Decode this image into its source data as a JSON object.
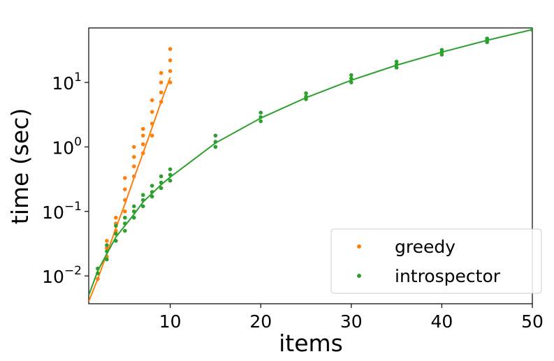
{
  "chart_data": {
    "type": "scatter",
    "xlabel": "items",
    "ylabel": "time (sec)",
    "xlim": [
      1,
      50
    ],
    "xticks": [
      10,
      20,
      30,
      40,
      50
    ],
    "ylim": [
      0.0037,
      70
    ],
    "yscale": "log",
    "yticks": [
      {
        "value": 0.01,
        "label": "10",
        "exponent": "−2"
      },
      {
        "value": 0.1,
        "label": "10",
        "exponent": "−1"
      },
      {
        "value": 1,
        "label": "10",
        "exponent": "0"
      },
      {
        "value": 10,
        "label": "10",
        "exponent": "1"
      }
    ],
    "legend": "lower right",
    "series": [
      {
        "name": "greedy",
        "color": "#ff7f0e",
        "x": [
          2,
          2,
          2,
          3,
          3,
          3,
          4,
          4,
          4,
          5,
          5,
          5,
          5,
          6,
          6,
          6,
          6,
          7,
          7,
          7,
          7,
          8,
          8,
          8,
          8,
          9,
          9,
          9,
          9,
          10,
          10,
          10,
          10
        ],
        "values": [
          0.009,
          0.011,
          0.013,
          0.02,
          0.027,
          0.035,
          0.05,
          0.065,
          0.08,
          0.1,
          0.15,
          0.22,
          0.33,
          0.35,
          0.5,
          0.7,
          1.0,
          0.8,
          1.1,
          1.5,
          1.9,
          1.5,
          2.3,
          3.5,
          5.3,
          5,
          7,
          10,
          14,
          10,
          15,
          22,
          33
        ],
        "fit": {
          "x": [
            1,
            2,
            3,
            4,
            5,
            6,
            7,
            8,
            9,
            10
          ],
          "values": [
            0.004,
            0.009,
            0.022,
            0.055,
            0.13,
            0.33,
            0.8,
            2,
            5,
            12
          ]
        }
      },
      {
        "name": "introspector",
        "color": "#2ca02c",
        "x": [
          2,
          2,
          3,
          3,
          3,
          4,
          4,
          4,
          5,
          5,
          5,
          6,
          6,
          6,
          7,
          7,
          7,
          8,
          8,
          8,
          9,
          9,
          9,
          10,
          10,
          10,
          15,
          15,
          15,
          20,
          20,
          20,
          25,
          25,
          25,
          30,
          30,
          30,
          35,
          35,
          35,
          40,
          40,
          40,
          45,
          45,
          45,
          50,
          50
        ],
        "values": [
          0.011,
          0.013,
          0.018,
          0.024,
          0.03,
          0.035,
          0.045,
          0.06,
          0.05,
          0.065,
          0.08,
          0.08,
          0.1,
          0.12,
          0.12,
          0.15,
          0.18,
          0.17,
          0.2,
          0.25,
          0.23,
          0.28,
          0.35,
          0.3,
          0.37,
          0.45,
          1.0,
          1.2,
          1.5,
          2.5,
          2.9,
          3.4,
          5.5,
          6,
          6.8,
          10,
          11.5,
          13,
          17,
          19,
          21,
          27,
          29.5,
          32,
          42,
          45,
          48,
          65,
          70
        ],
        "fit": {
          "x": [
            1,
            2,
            3,
            4,
            5,
            6,
            7,
            8,
            9,
            10,
            15,
            20,
            25,
            30,
            35,
            40,
            45,
            50
          ],
          "values": [
            0.005,
            0.012,
            0.022,
            0.04,
            0.06,
            0.09,
            0.14,
            0.19,
            0.26,
            0.34,
            1.15,
            2.8,
            5.8,
            10.8,
            18.5,
            29.5,
            45,
            66
          ]
        }
      }
    ]
  }
}
